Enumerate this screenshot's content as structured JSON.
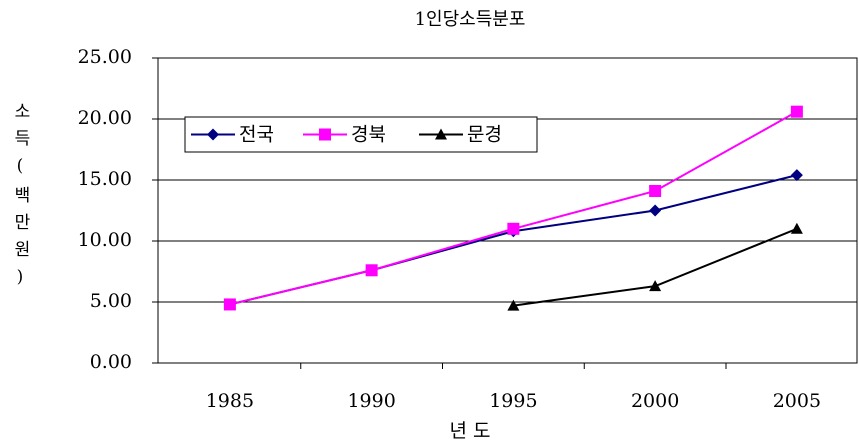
{
  "chart_data": {
    "type": "line",
    "title": "1인당소득분포",
    "x_label": "년 도",
    "y_label": "소득(백만원)",
    "categories": [
      "1985",
      "1990",
      "1995",
      "2000",
      "2005"
    ],
    "series": [
      {
        "name": "전국",
        "color": "#000080",
        "marker": "diamond",
        "values": [
          4.8,
          7.6,
          10.8,
          12.5,
          15.4
        ]
      },
      {
        "name": "경북",
        "color": "#ff00ff",
        "marker": "square",
        "values": [
          4.8,
          7.6,
          11.0,
          14.1,
          20.6
        ]
      },
      {
        "name": "문경",
        "color": "#000000",
        "marker": "triangle",
        "values": [
          null,
          null,
          4.7,
          6.3,
          11.0
        ]
      }
    ],
    "ylim": [
      0,
      25
    ],
    "yticks": [
      {
        "value": 0,
        "label": "0.00"
      },
      {
        "value": 5,
        "label": "5.00"
      },
      {
        "value": 10,
        "label": "10.00"
      },
      {
        "value": 15,
        "label": "15.00"
      },
      {
        "value": 20,
        "label": "20.00"
      },
      {
        "value": 25,
        "label": "25.00"
      }
    ],
    "grid": true,
    "legend": "upper left"
  }
}
